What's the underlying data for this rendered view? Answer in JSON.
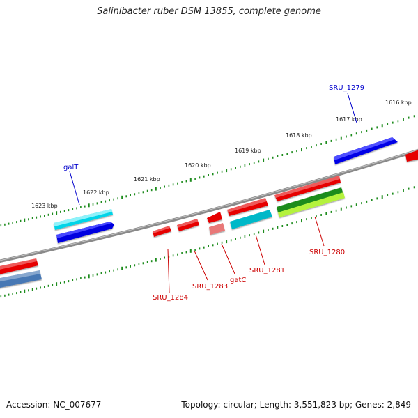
{
  "title": "Salinibacter ruber DSM 13855, complete genome",
  "footer": {
    "accession": "Accession: NC_007677",
    "summary": "Topology: circular; Length: 3,551,823 bp; Genes: 2,849"
  },
  "scale_labels": [
    "1623 kbp",
    "1622 kbp",
    "1621 kbp",
    "1620 kbp",
    "1619 kbp",
    "1618 kbp",
    "1617 kbp",
    "1616 kbp"
  ],
  "gene_labels": {
    "top": [
      "galT",
      "SRU_1279"
    ],
    "bottom": [
      "SRU_1284",
      "SRU_1283",
      "gatC",
      "SRU_1281",
      "SRU_1280"
    ]
  },
  "colors": {
    "backbone": "#8c8c8c",
    "ticks": "#1e8c1e",
    "forward_cds": "#0000e6",
    "forward_cds_alt": "#00d8e6",
    "reverse_cds": "#e60000",
    "reverse_cds_alt": "#e87878",
    "rna_teal": "#00b8c8",
    "dark_green": "#1e8c1e",
    "light_green": "#b0f03c",
    "steel_blue": "#4678b4",
    "label_top": "#0000cc",
    "label_bottom": "#cc0000"
  }
}
